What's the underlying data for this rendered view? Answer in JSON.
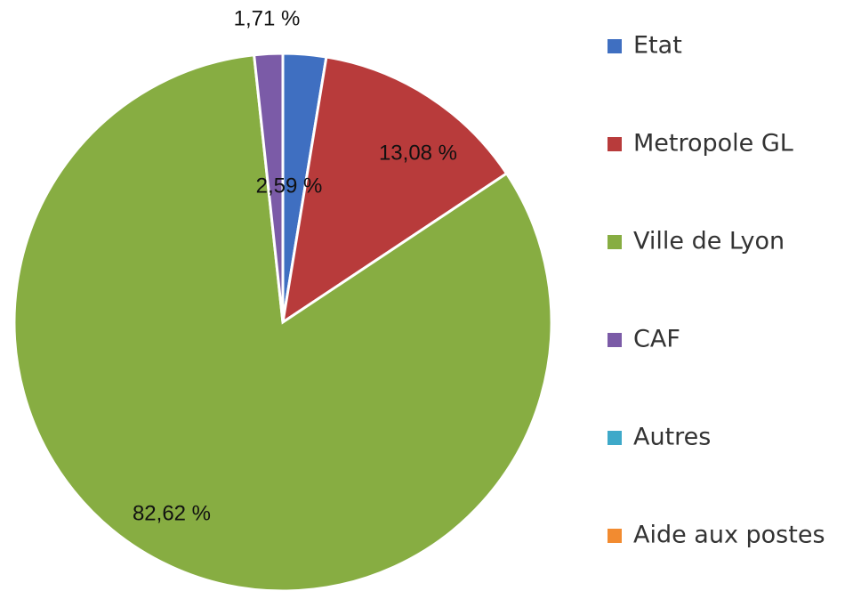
{
  "chart_data": {
    "type": "pie",
    "categories": [
      "Etat",
      "Metropole GL",
      "Ville de Lyon",
      "CAF",
      "Autres",
      "Aide aux postes"
    ],
    "values": [
      2.59,
      13.08,
      82.62,
      1.71,
      0,
      0
    ],
    "value_labels": [
      "2,59 %",
      "13,08 %",
      "82,62 %",
      "1,71 %",
      null,
      null
    ],
    "colors": [
      "#3f6fc1",
      "#b83b3b",
      "#87ad42",
      "#7b5ba7",
      "#3ea9c9",
      "#f28b30"
    ],
    "legend": "right"
  }
}
